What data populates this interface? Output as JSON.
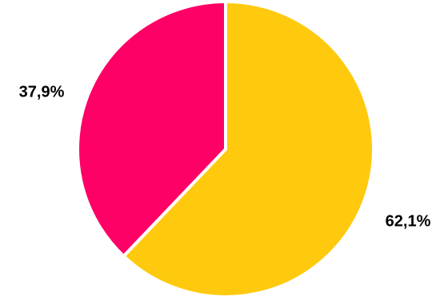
{
  "chart_data": {
    "type": "pie",
    "title": "",
    "slices": [
      {
        "label": "62,1%",
        "value": 62.1,
        "color": "#FFC90E"
      },
      {
        "label": "37,9%",
        "value": 37.9,
        "color": "#FF0066"
      }
    ],
    "start_angle_deg": 0,
    "direction": "clockwise",
    "legend": "none"
  }
}
